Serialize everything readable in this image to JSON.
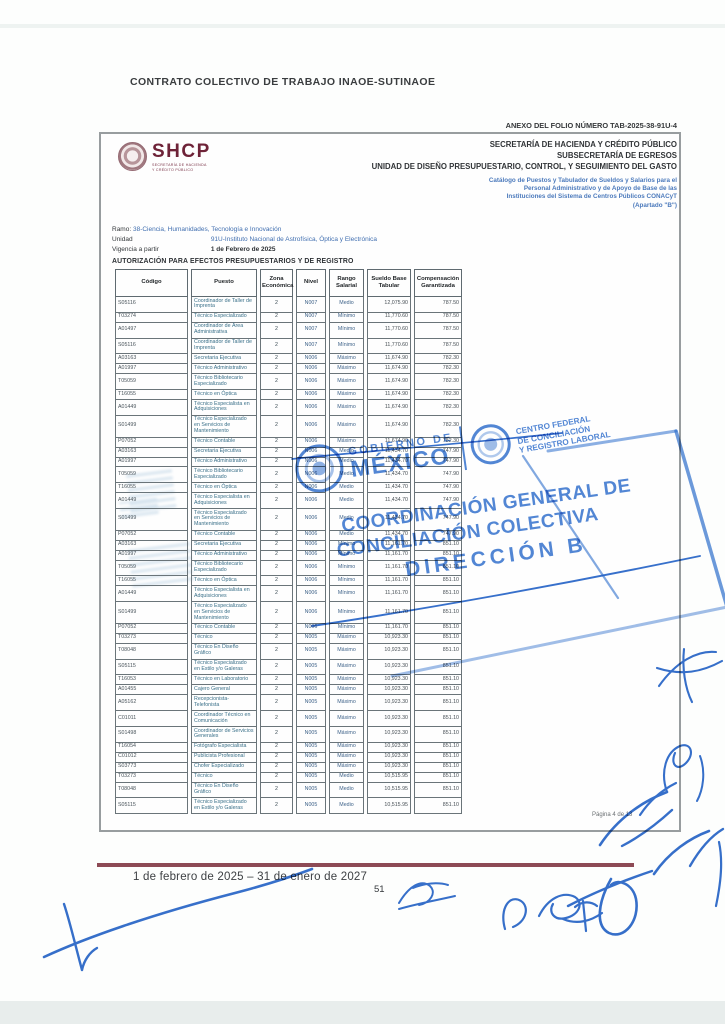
{
  "page": {
    "title": "CONTRATO COLECTIVO DE TRABAJO   INAOE-SUTINAOE",
    "anexo": "ANEXO DEL FOLIO NÚMERO TAB-2025-38-91U-4",
    "page_indicator": "Página 4 de 13",
    "footer_period": "1 de febrero de 2025 – 31 de enero de 2027",
    "footer_page_number": "51"
  },
  "letterhead": {
    "logo_acronym": "SHCP",
    "logo_caption_line1": "SECRETARÍA DE HACIENDA",
    "logo_caption_line2": "Y CRÉDITO PÚBLICO",
    "right_lines": [
      "SECRETARÍA DE HACIENDA Y CRÉDITO PÚBLICO",
      "SUBSECRETARÍA DE EGRESOS",
      "UNIDAD DE DISEÑO PRESUPUESTARIO, CONTROL, Y SEGUIMIENTO DEL GASTO"
    ],
    "catalog_lines": [
      "Catálogo de Puestos y Tabulador de Sueldos y Salarios para el",
      "Personal Administrativo y de Apoyo de Base de las",
      "Instituciones del Sistema de Centros Públicos CONACyT",
      "(Apartado \"B\")"
    ]
  },
  "meta": {
    "ramo_label": "Ramo:",
    "ramo_value": "38-Ciencia, Humanidades, Tecnología e Innovación",
    "unidad_label": "Unidad",
    "unidad_value": "91U-Instituto Nacional de Astrofísica, Óptica y Electrónica",
    "vigencia_label": "Vigencia a partir",
    "vigencia_value": "1 de Febrero de 2025",
    "autorizacion": "AUTORIZACIÓN PARA EFECTOS PRESUPUESTARIOS Y DE REGISTRO"
  },
  "table": {
    "headers": [
      "Código",
      "Puesto",
      "Zona Económica",
      "Nivel",
      "Rango Salarial",
      "Sueldo Base Tabular",
      "Compensación Garantizada"
    ],
    "rows": [
      [
        "S05116",
        "Coordinador de Taller de Imprenta",
        "2",
        "N007",
        "Medio",
        "12,075.90",
        "787.50"
      ],
      [
        "T03274",
        "Técnico Especializado",
        "2",
        "N007",
        "Mínimo",
        "11,770.60",
        "787.50"
      ],
      [
        "A01497",
        "Coordinador de Área Administrativa",
        "2",
        "N007",
        "Mínimo",
        "11,770.60",
        "787.50"
      ],
      [
        "S05116",
        "Coordinador de Taller de Imprenta",
        "2",
        "N007",
        "Mínimo",
        "11,770.60",
        "787.50"
      ],
      [
        "A03163",
        "Secretaria Ejecutiva",
        "2",
        "N006",
        "Máximo",
        "11,674.90",
        "782.30"
      ],
      [
        "A01997",
        "Técnico Administrativo",
        "2",
        "N006",
        "Máximo",
        "11,674.90",
        "782.30"
      ],
      [
        "T05059",
        "Técnico Bibliotecario Especializado",
        "2",
        "N006",
        "Máximo",
        "11,674.90",
        "782.30"
      ],
      [
        "T16055",
        "Técnico en Óptica",
        "2",
        "N006",
        "Máximo",
        "11,674.90",
        "782.30"
      ],
      [
        "A01449",
        "Técnico Especialista en Adquisiciones",
        "2",
        "N006",
        "Máximo",
        "11,674.90",
        "782.30"
      ],
      [
        "S01499",
        "Técnico Especializado en Servicios de Mantenimiento",
        "2",
        "N006",
        "Máximo",
        "11,674.90",
        "782.30"
      ],
      [
        "P07052",
        "Técnico Contable",
        "2",
        "N006",
        "Máximo",
        "11,674.90",
        "782.30"
      ],
      [
        "A03163",
        "Secretaria Ejecutiva",
        "2",
        "N006",
        "Medio",
        "11,434.70",
        "747.90"
      ],
      [
        "A01997",
        "Técnico Administrativo",
        "2",
        "N006",
        "Medio",
        "11,434.70",
        "747.90"
      ],
      [
        "T05059",
        "Técnico Bibliotecario Especializado",
        "2",
        "N006",
        "Medio",
        "11,434.70",
        "747.90"
      ],
      [
        "T16055",
        "Técnico en Óptica",
        "2",
        "N006",
        "Medio",
        "11,434.70",
        "747.90"
      ],
      [
        "A01449",
        "Técnico Especialista en Adquisiciones",
        "2",
        "N006",
        "Medio",
        "11,434.70",
        "747.90"
      ],
      [
        "S01499",
        "Técnico Especializado en Servicios de Mantenimiento",
        "2",
        "N006",
        "Medio",
        "11,434.70",
        "747.90"
      ],
      [
        "P07052",
        "Técnico Contable",
        "2",
        "N006",
        "Medio",
        "11,434.70",
        "747.90"
      ],
      [
        "A03163",
        "Secretaria Ejecutiva",
        "2",
        "N006",
        "Mínimo",
        "11,161.70",
        "851.10"
      ],
      [
        "A01997",
        "Técnico Administrativo",
        "2",
        "N006",
        "Mínimo",
        "11,161.70",
        "851.10"
      ],
      [
        "T05059",
        "Técnico Bibliotecario Especializado",
        "2",
        "N006",
        "Mínimo",
        "11,161.70",
        "851.10"
      ],
      [
        "T16055",
        "Técnico en Óptica",
        "2",
        "N006",
        "Mínimo",
        "11,161.70",
        "851.10"
      ],
      [
        "A01449",
        "Técnico Especialista en Adquisiciones",
        "2",
        "N006",
        "Mínimo",
        "11,161.70",
        "851.10"
      ],
      [
        "S01499",
        "Técnico Especializado en Servicios de Mantenimiento",
        "2",
        "N006",
        "Mínimo",
        "11,161.70",
        "851.10"
      ],
      [
        "P07052",
        "Técnico Contable",
        "2",
        "N006",
        "Mínimo",
        "11,161.70",
        "851.10"
      ],
      [
        "T03273",
        "Técnico",
        "2",
        "N005",
        "Máximo",
        "10,923.30",
        "851.10"
      ],
      [
        "T08048",
        "Técnico En Diseño Gráfico",
        "2",
        "N005",
        "Máximo",
        "10,923.30",
        "851.10"
      ],
      [
        "S05115",
        "Técnico Especializado en Estilo y/o Galeras",
        "2",
        "N005",
        "Máximo",
        "10,923.30",
        "851.10"
      ],
      [
        "T16053",
        "Técnico en Laboratorio",
        "2",
        "N005",
        "Máximo",
        "10,923.30",
        "851.10"
      ],
      [
        "A01455",
        "Cajero General",
        "2",
        "N005",
        "Máximo",
        "10,923.30",
        "851.10"
      ],
      [
        "A05162",
        "Recepcionista-Telefonista",
        "2",
        "N005",
        "Máximo",
        "10,923.30",
        "851.10"
      ],
      [
        "C01011",
        "Coordinador Técnico en Comunicación",
        "2",
        "N005",
        "Máximo",
        "10,923.30",
        "851.10"
      ],
      [
        "S01498",
        "Coordinador de Servicios Generales",
        "2",
        "N005",
        "Máximo",
        "10,923.30",
        "851.10"
      ],
      [
        "T16054",
        "Fotógrafo Especialista",
        "2",
        "N005",
        "Máximo",
        "10,923.30",
        "851.10"
      ],
      [
        "C01012",
        "Publicista Profesional",
        "2",
        "N005",
        "Máximo",
        "10,923.30",
        "851.10"
      ],
      [
        "S03773",
        "Chofer Especializado",
        "2",
        "N005",
        "Máximo",
        "10,923.30",
        "851.10"
      ],
      [
        "T03273",
        "Técnico",
        "2",
        "N005",
        "Medio",
        "10,515.95",
        "851.10"
      ],
      [
        "T08048",
        "Técnico En Diseño Gráfico",
        "2",
        "N005",
        "Medio",
        "10,515.95",
        "851.10"
      ],
      [
        "S05115",
        "Técnico Especializado en Estilo y/o Galeras",
        "2",
        "N005",
        "Medio",
        "10,515.95",
        "851.10"
      ]
    ]
  },
  "stamp": {
    "gobierno_top": "GOBIERNO DE",
    "gobierno_bottom": "MÉXICO",
    "cfcrl_line1": "CENTRO FEDERAL",
    "cfcrl_line2": "DE CONCILIACIÓN",
    "cfcrl_line3": "Y REGISTRO LABORAL",
    "line1": "COORDINACIÓN GENERAL DE",
    "line2": "CONCILIACIÓN COLECTIVA",
    "line3": "DIRECCIÓN B"
  },
  "colors": {
    "shcp_maroon": "#6e2338",
    "maroon_rule": "#8d4a55",
    "header_blue": "#4c7abc",
    "stamp_blue": "#2b6ccc",
    "pen_blue": "#2160c6"
  }
}
